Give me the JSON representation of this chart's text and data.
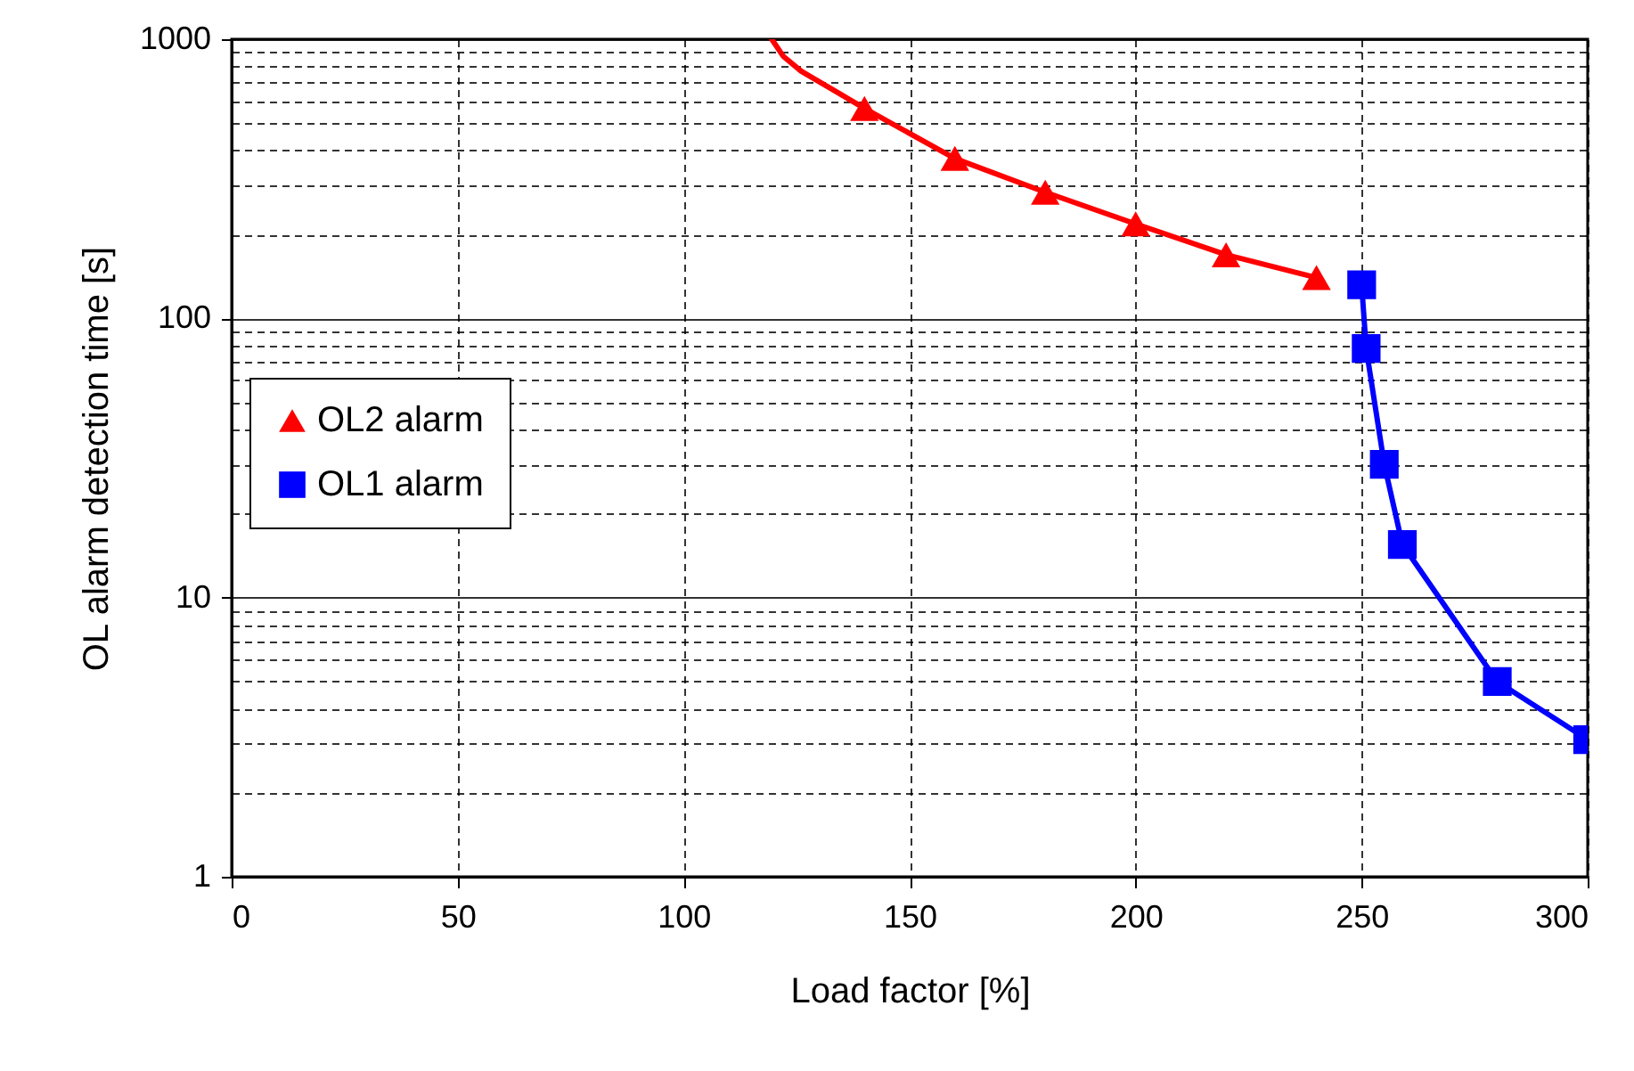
{
  "chart_data": {
    "type": "line",
    "xlabel": "Load factor [%]",
    "ylabel": "OL alarm detection time [s]",
    "xlim": [
      0,
      300
    ],
    "xticks": [
      0,
      50,
      100,
      150,
      200,
      250,
      300
    ],
    "ylim": [
      1,
      1000
    ],
    "yticks": [
      1,
      {
        "value": 2,
        "label": null
      },
      {
        "value": 3,
        "label": null
      },
      {
        "value": 4,
        "label": null
      },
      {
        "value": 5,
        "label": null
      },
      {
        "value": 6,
        "label": null
      },
      {
        "value": 7,
        "label": null
      },
      {
        "value": 8,
        "label": null
      },
      {
        "value": 9,
        "label": null
      },
      10,
      {
        "value": 20,
        "label": null
      },
      {
        "value": 30,
        "label": null
      },
      {
        "value": 40,
        "label": null
      },
      {
        "value": 50,
        "label": null
      },
      {
        "value": 60,
        "label": null
      },
      {
        "value": 70,
        "label": null
      },
      {
        "value": 80,
        "label": null
      },
      {
        "value": 90,
        "label": null
      },
      100,
      {
        "value": 200,
        "label": null
      },
      {
        "value": 300,
        "label": null
      },
      {
        "value": 400,
        "label": null
      },
      {
        "value": 500,
        "label": null
      },
      {
        "value": 600,
        "label": null
      },
      {
        "value": 700,
        "label": null
      },
      {
        "value": 800,
        "label": null
      },
      {
        "value": 900,
        "label": null
      },
      1000
    ],
    "log": true,
    "grid": true,
    "legend": "left",
    "line_style": "solid",
    "series": [
      {
        "color": "#ff0000",
        "marker": "none",
        "x": [
          119.5,
          122,
          126,
          134,
          140
        ],
        "values": [
          1000,
          870,
          768,
          645,
          565
        ]
      },
      {
        "name": "OL2 alarm",
        "color": "#ff0000",
        "marker": "triangle",
        "x": [
          140,
          160,
          180,
          200,
          220,
          240
        ],
        "values": [
          565,
          374,
          283,
          218,
          169,
          140
        ]
      },
      {
        "name": "OL1 alarm",
        "color": "#0000ff",
        "marker": "square",
        "x": [
          250,
          251,
          255,
          259,
          280,
          300
        ],
        "values": [
          132,
          78,
          30,
          15.5,
          5,
          3.1
        ]
      }
    ]
  }
}
